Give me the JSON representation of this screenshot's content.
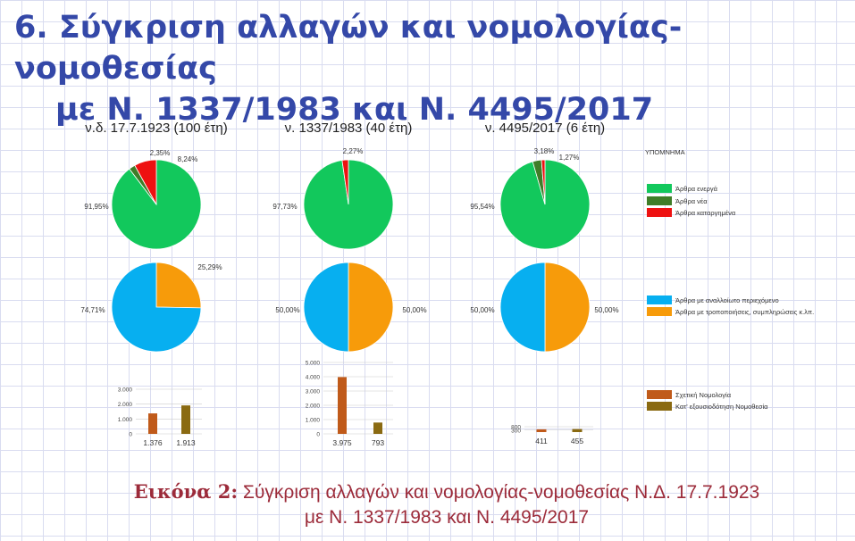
{
  "slide": {
    "title_line1": "6. Σύγκριση αλλαγών και νομολογίας-νομοθεσίας",
    "title_line2": "με Ν. 1337/1983 και Ν. 4495/2017"
  },
  "caption": {
    "label": "Εικόνα 2:",
    "line1": "Σύγκριση αλλαγών και νομολογίας-νομοθεσίας Ν.Δ. 17.7.1923",
    "line2": "με Ν. 1337/1983 και Ν. 4495/2017"
  },
  "colors": {
    "active": "#12c85c",
    "new": "#3f7d28",
    "repealed": "#ee1111",
    "unchanged": "#07aff0",
    "amended": "#f79b0a",
    "case_law": "#c05a1a",
    "delegated": "#8a6a12"
  },
  "legend": {
    "title": "ΥΠΟΜΝΗΜΑ",
    "status_items": [
      {
        "label": "Άρθρα ενεργά",
        "color_key": "active"
      },
      {
        "label": "Άρθρα νέα",
        "color_key": "new"
      },
      {
        "label": "Άρθρα καταργημένα",
        "color_key": "repealed"
      }
    ],
    "content_items": [
      {
        "label": "Άρθρα με αναλλοίωτο περιεχόμενο",
        "color_key": "unchanged"
      },
      {
        "label": "Άρθρα με τροποποιήσεις, συμπληρώσεις κ.λπ.",
        "color_key": "amended"
      }
    ],
    "bar_items": [
      {
        "label": "Σχετική Νομολογία",
        "color_key": "case_law"
      },
      {
        "label": "Κατ' εξουσιοδότηση Νομοθεσία",
        "color_key": "delegated"
      }
    ]
  },
  "chart_data": [
    {
      "type": "pie",
      "title": "ν.δ. 17.7.1923 (100 έτη)",
      "slices": [
        {
          "label": "91,95%",
          "value": 91.95,
          "color_key": "active"
        },
        {
          "label": "2,35%",
          "value": 2.35,
          "color_key": "new"
        },
        {
          "label": "8,24%",
          "value": 8.24,
          "color_key": "repealed"
        }
      ]
    },
    {
      "type": "pie",
      "title": "ν. 1337/1983 (40 έτη)",
      "slices": [
        {
          "label": "97,73%",
          "value": 97.73,
          "color_key": "active"
        },
        {
          "label": "2,27%",
          "value": 2.27,
          "color_key": "repealed"
        }
      ]
    },
    {
      "type": "pie",
      "title": "ν. 4495/2017 (6 έτη)",
      "slices": [
        {
          "label": "95,54%",
          "value": 95.54,
          "color_key": "active"
        },
        {
          "label": "3,18%",
          "value": 3.18,
          "color_key": "new"
        },
        {
          "label": "1,27%",
          "value": 1.27,
          "color_key": "repealed"
        }
      ]
    },
    {
      "type": "pie",
      "slices": [
        {
          "label": "25,29%",
          "value": 25.29,
          "color_key": "amended"
        },
        {
          "label": "74,71%",
          "value": 74.71,
          "color_key": "unchanged"
        }
      ]
    },
    {
      "type": "pie",
      "slices": [
        {
          "label": "50,00%",
          "value": 50.0,
          "color_key": "amended"
        },
        {
          "label": "50,00%",
          "value": 50.0,
          "color_key": "unchanged"
        }
      ]
    },
    {
      "type": "pie",
      "slices": [
        {
          "label": "50,00%",
          "value": 50.0,
          "color_key": "amended"
        },
        {
          "label": "50,00%",
          "value": 50.0,
          "color_key": "unchanged"
        }
      ]
    },
    {
      "type": "bar",
      "ylim": [
        0,
        3000
      ],
      "yticks": [
        "0",
        "1.000",
        "2.000",
        "3.000"
      ],
      "bars": [
        {
          "value": 1376,
          "label": "1.376",
          "color_key": "case_law"
        },
        {
          "value": 1913,
          "label": "1.913",
          "color_key": "delegated"
        }
      ]
    },
    {
      "type": "bar",
      "ylim": [
        0,
        5000
      ],
      "yticks": [
        "0",
        "1.000",
        "2.000",
        "3.000",
        "4.000",
        "5.000"
      ],
      "bars": [
        {
          "value": 3975,
          "label": "3.975",
          "color_key": "case_law"
        },
        {
          "value": 793,
          "label": "793",
          "color_key": "delegated"
        }
      ]
    },
    {
      "type": "bar",
      "ylim": [
        0,
        800
      ],
      "yticks": [
        "300",
        "800"
      ],
      "bars": [
        {
          "value": 411,
          "label": "411",
          "color_key": "case_law"
        },
        {
          "value": 455,
          "label": "455",
          "color_key": "delegated"
        }
      ]
    }
  ]
}
